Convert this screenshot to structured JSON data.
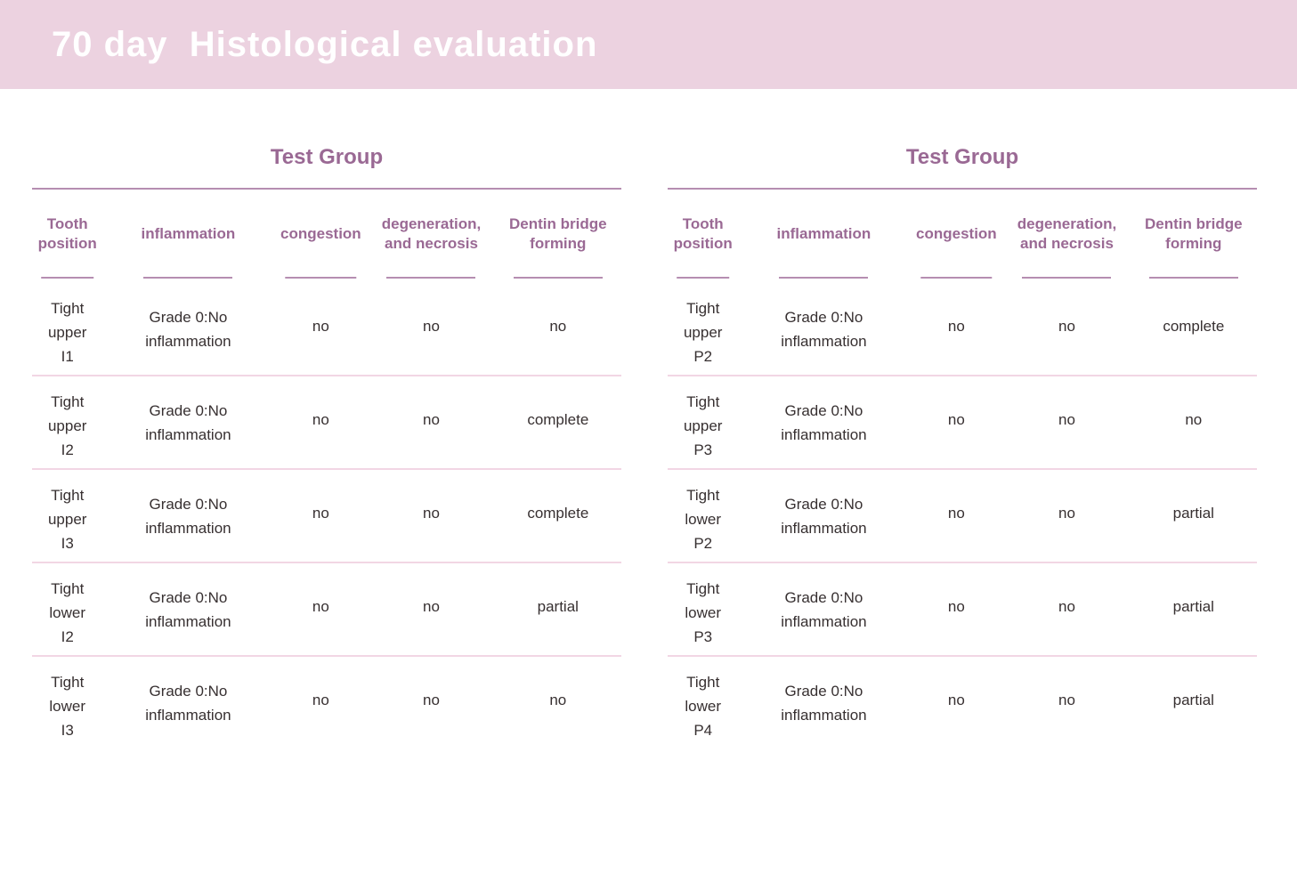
{
  "banner": {
    "title": "70 day  Histological evaluation",
    "background": "#ECD2E0",
    "text_color": "#FFFFFF"
  },
  "theme": {
    "heading_purple": "#9A6994",
    "header_line": "#B68EB1",
    "row_separator": "#F2D6E4",
    "data_text": "#373031"
  },
  "tables": [
    {
      "title": "Test Group",
      "columns": [
        "Tooth position",
        "inflammation",
        "congestion",
        "degeneration, and necrosis",
        "Dentin bridge forming"
      ],
      "rows": [
        {
          "tooth": [
            "Tight",
            "upper",
            "I1"
          ],
          "inflammation": [
            "Grade 0:No",
            "inflammation"
          ],
          "congestion": "no",
          "degeneration": "no",
          "dentin_bridge": "no"
        },
        {
          "tooth": [
            "Tight",
            "upper",
            "I2"
          ],
          "inflammation": [
            "Grade 0:No",
            "inflammation"
          ],
          "congestion": "no",
          "degeneration": "no",
          "dentin_bridge": "complete"
        },
        {
          "tooth": [
            "Tight",
            "upper",
            "I3"
          ],
          "inflammation": [
            "Grade 0:No",
            "inflammation"
          ],
          "congestion": "no",
          "degeneration": "no",
          "dentin_bridge": "complete"
        },
        {
          "tooth": [
            "Tight",
            "lower",
            "I2"
          ],
          "inflammation": [
            "Grade 0:No",
            "inflammation"
          ],
          "congestion": "no",
          "degeneration": "no",
          "dentin_bridge": "partial"
        },
        {
          "tooth": [
            "Tight",
            "lower",
            "I3"
          ],
          "inflammation": [
            "Grade 0:No",
            "inflammation"
          ],
          "congestion": "no",
          "degeneration": "no",
          "dentin_bridge": "no"
        }
      ]
    },
    {
      "title": "Test Group",
      "columns": [
        "Tooth position",
        "inflammation",
        "congestion",
        "degeneration, and necrosis",
        "Dentin bridge forming"
      ],
      "rows": [
        {
          "tooth": [
            "Tight",
            "upper",
            "P2"
          ],
          "inflammation": [
            "Grade 0:No",
            "inflammation"
          ],
          "congestion": "no",
          "degeneration": "no",
          "dentin_bridge": "complete"
        },
        {
          "tooth": [
            "Tight",
            "upper",
            "P3"
          ],
          "inflammation": [
            "Grade 0:No",
            "inflammation"
          ],
          "congestion": "no",
          "degeneration": "no",
          "dentin_bridge": "no"
        },
        {
          "tooth": [
            "Tight",
            "lower",
            "P2"
          ],
          "inflammation": [
            "Grade 0:No",
            "inflammation"
          ],
          "congestion": "no",
          "degeneration": "no",
          "dentin_bridge": "partial"
        },
        {
          "tooth": [
            "Tight",
            "lower",
            "P3"
          ],
          "inflammation": [
            "Grade 0:No",
            "inflammation"
          ],
          "congestion": "no",
          "degeneration": "no",
          "dentin_bridge": "partial"
        },
        {
          "tooth": [
            "Tight",
            "lower",
            "P4"
          ],
          "inflammation": [
            "Grade 0:No",
            "inflammation"
          ],
          "congestion": "no",
          "degeneration": "no",
          "dentin_bridge": "partial"
        }
      ]
    }
  ]
}
